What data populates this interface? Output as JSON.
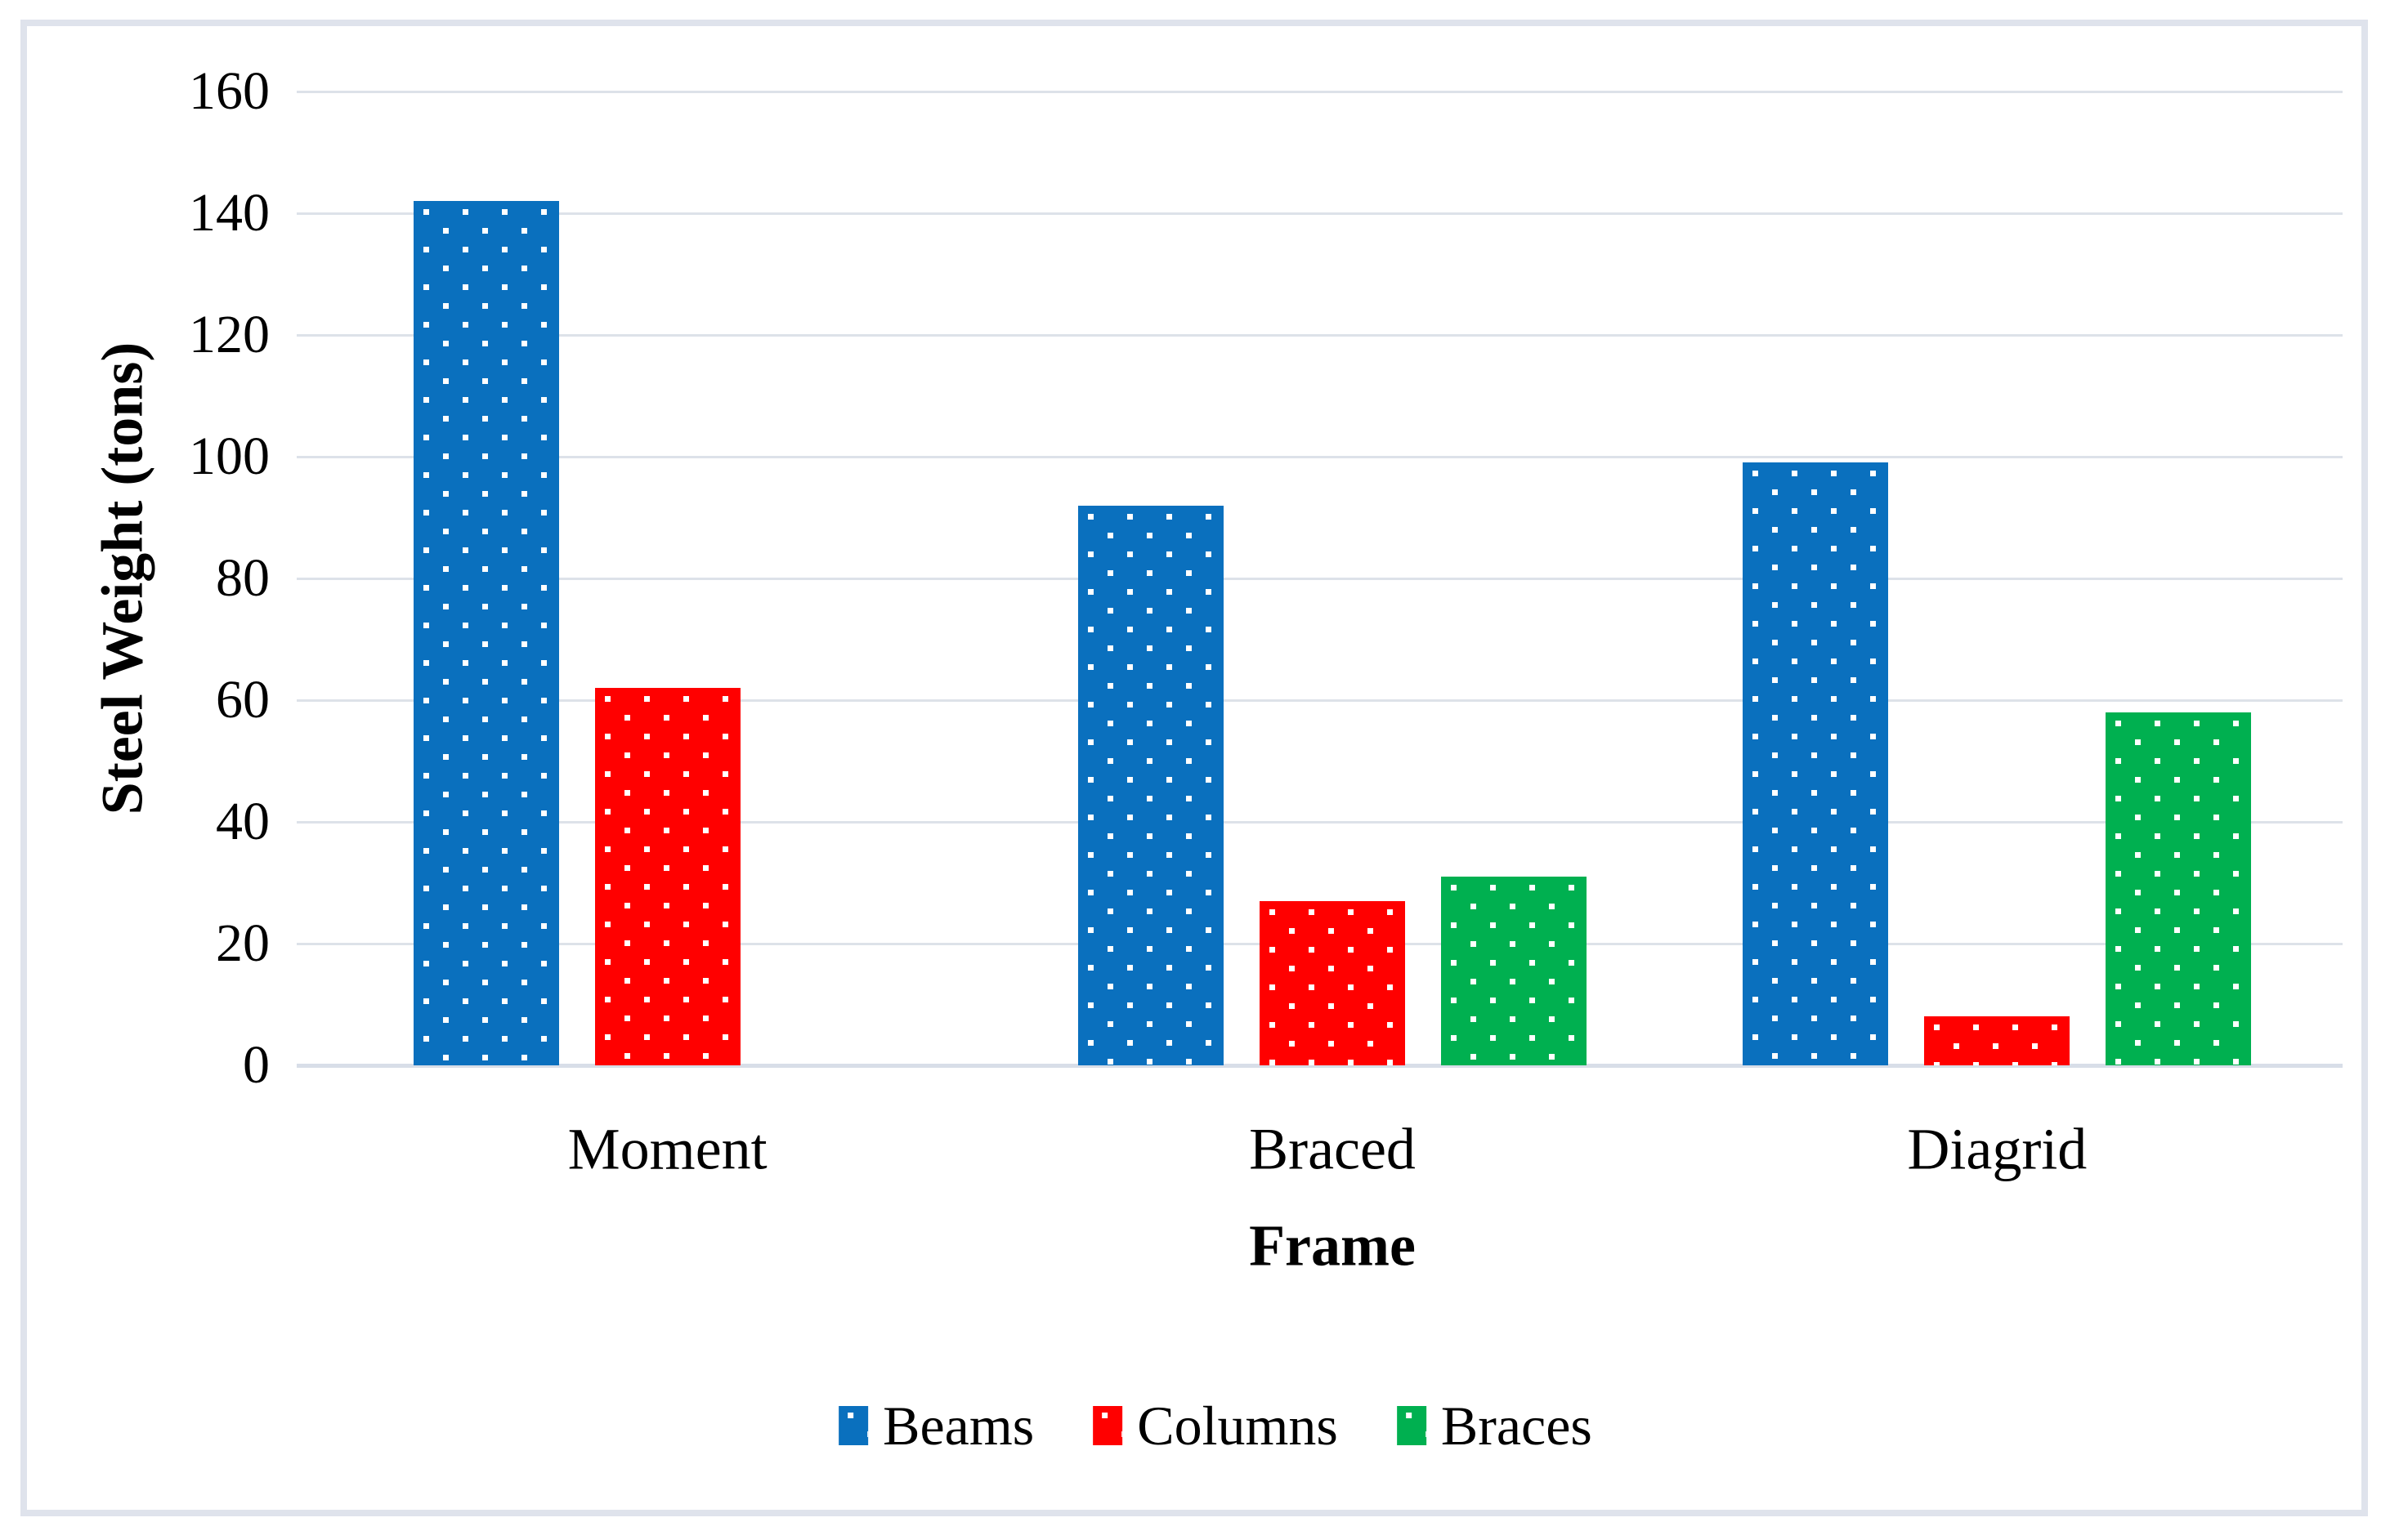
{
  "figure": {
    "background": "#ffffff",
    "border_color": "#dfe3ec",
    "gridline_color": "#dde2e9",
    "axis_line_color": "#d8dee8",
    "pattern": "white-square-dots"
  },
  "chart_data": {
    "type": "bar",
    "title": "",
    "xlabel": "Frame",
    "ylabel": "Steel Weight (tons)",
    "categories": [
      "Moment",
      "Braced",
      "Diagrid"
    ],
    "series": [
      {
        "name": "Beams",
        "color": "#0a70be",
        "values": [
          142,
          92,
          99
        ]
      },
      {
        "name": "Columns",
        "color": "#ff0000",
        "values": [
          62,
          27,
          8
        ]
      },
      {
        "name": "Braces",
        "color": "#00b050",
        "values": [
          null,
          31,
          58
        ]
      }
    ],
    "ylim": [
      0,
      160
    ],
    "yticks": [
      0,
      20,
      40,
      60,
      80,
      100,
      120,
      140,
      160
    ],
    "grid": true,
    "legend_position": "bottom"
  }
}
